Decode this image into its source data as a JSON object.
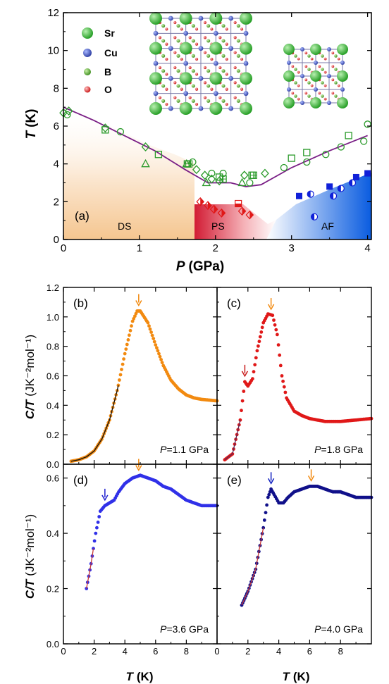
{
  "colors": {
    "ds": "#f5cfa6",
    "ps": "#d8263a",
    "af": "#1a5fd6",
    "green": "#2a9a2a",
    "curve": "#7a1f86",
    "orange": "#f28a10",
    "red": "#e01818",
    "blue": "#3030e8",
    "navy": "#10108a"
  },
  "chart_data": [
    {
      "type": "scatter",
      "panel_label": "(a)",
      "xlabel_italic": "P",
      "xlabel_unit": "(GPa)",
      "ylabel_italic": "T",
      "ylabel_unit": "(K)",
      "xlim": [
        0,
        4.05
      ],
      "ylim": [
        0,
        12
      ],
      "xticks": [
        "0",
        "1",
        "2",
        "3",
        "4"
      ],
      "yticks": [
        "0",
        "2",
        "4",
        "6",
        "8",
        "10",
        "12"
      ],
      "regions": [
        "DS",
        "PS",
        "AF"
      ],
      "legend": [
        "Sr",
        "Cu",
        "B",
        "O"
      ],
      "series": [
        {
          "marker": "circle",
          "points": [
            [
              0.05,
              6.6
            ],
            [
              0.75,
              5.7
            ],
            [
              1.7,
              4.1
            ],
            [
              1.95,
              3.5
            ],
            [
              2.1,
              3.5
            ],
            [
              2.45,
              3.0
            ],
            [
              2.9,
              3.8
            ],
            [
              3.2,
              4.1
            ],
            [
              3.45,
              4.5
            ],
            [
              3.65,
              4.9
            ],
            [
              3.95,
              5.2
            ],
            [
              4.0,
              6.1
            ]
          ]
        },
        {
          "marker": "diamond",
          "points": [
            [
              0.0,
              6.7
            ],
            [
              0.07,
              6.8
            ],
            [
              0.55,
              5.9
            ],
            [
              1.08,
              4.9
            ],
            [
              1.75,
              3.7
            ],
            [
              1.86,
              3.4
            ],
            [
              1.95,
              3.2
            ],
            [
              2.05,
              3.1
            ],
            [
              2.38,
              3.4
            ],
            [
              2.65,
              3.5
            ]
          ]
        },
        {
          "marker": "square",
          "points": [
            [
              0.55,
              5.8
            ],
            [
              1.25,
              4.5
            ],
            [
              1.63,
              4.0
            ],
            [
              2.05,
              3.3
            ],
            [
              2.48,
              3.4
            ],
            [
              3.0,
              4.3
            ],
            [
              3.2,
              4.6
            ],
            [
              3.75,
              5.5
            ]
          ]
        },
        {
          "marker": "triangle",
          "points": [
            [
              1.08,
              4.0
            ],
            [
              1.62,
              4.0
            ],
            [
              1.88,
              3.0
            ],
            [
              2.35,
              3.0
            ]
          ]
        },
        {
          "marker": "squareplus",
          "points": [
            [
              1.65,
              4.0
            ],
            [
              2.1,
              3.2
            ],
            [
              2.5,
              3.4
            ]
          ]
        },
        {
          "marker": "red_diamond",
          "points": [
            [
              1.8,
              2.0
            ],
            [
              1.9,
              1.8
            ],
            [
              1.98,
              1.6
            ],
            [
              2.08,
              1.4
            ],
            [
              2.35,
              1.5
            ],
            [
              2.45,
              1.3
            ]
          ]
        },
        {
          "marker": "red_square",
          "points": [
            [
              2.3,
              1.9
            ]
          ]
        },
        {
          "marker": "blue_square",
          "points": [
            [
              3.1,
              2.3
            ],
            [
              3.5,
              2.8
            ],
            [
              3.85,
              3.3
            ],
            [
              4.0,
              3.5
            ]
          ]
        },
        {
          "marker": "blue_circle_half",
          "points": [
            [
              3.25,
              2.4
            ],
            [
              3.3,
              1.2
            ],
            [
              3.55,
              2.3
            ],
            [
              3.65,
              2.7
            ],
            [
              3.8,
              3.0
            ]
          ]
        }
      ],
      "phase_boundary": {
        "x": [
          0.0,
          0.4,
          0.8,
          1.2,
          1.6,
          1.9,
          2.2,
          2.4,
          2.6,
          3.0,
          3.5,
          4.0
        ],
        "y": [
          7.0,
          6.3,
          5.5,
          4.7,
          3.7,
          3.0,
          3.0,
          2.8,
          2.9,
          3.8,
          4.7,
          5.5
        ]
      }
    },
    {
      "type": "line",
      "panel_label": "(b)",
      "pressure_prefix": "P",
      "pressure_value": "=1.1 GPa",
      "ylabel_main": "C/T",
      "ylabel_unit": "(JK⁻²mol⁻¹)",
      "xlim": [
        0,
        10
      ],
      "ylim": [
        0,
        1.2
      ],
      "yticks": [
        "0.0",
        "0.2",
        "0.4",
        "0.6",
        "0.8",
        "1.0",
        "1.2"
      ],
      "x": [
        0.5,
        1,
        1.5,
        2,
        2.5,
        3,
        3.5,
        4,
        4.5,
        4.8,
        5,
        5.5,
        6,
        6.5,
        7,
        7.5,
        8,
        8.5,
        9,
        10
      ],
      "y": [
        0.02,
        0.03,
        0.05,
        0.09,
        0.17,
        0.3,
        0.5,
        0.75,
        0.97,
        1.04,
        1.04,
        0.96,
        0.81,
        0.67,
        0.57,
        0.51,
        0.47,
        0.45,
        0.44,
        0.43
      ],
      "fit_x_max": 3.6,
      "arrows": [
        4.9
      ]
    },
    {
      "type": "line",
      "panel_label": "(c)",
      "pressure_prefix": "P",
      "pressure_value": "=1.8 GPa",
      "xlim": [
        0,
        10
      ],
      "ylim": [
        0,
        1.2
      ],
      "x": [
        0.5,
        1,
        1.5,
        1.8,
        2,
        2.3,
        2.6,
        3,
        3.3,
        3.6,
        3.9,
        4.2,
        4.5,
        5,
        5.5,
        6,
        7,
        8,
        9,
        10
      ],
      "y": [
        0.03,
        0.07,
        0.3,
        0.56,
        0.53,
        0.58,
        0.77,
        0.96,
        1.02,
        1.01,
        0.88,
        0.6,
        0.45,
        0.36,
        0.33,
        0.31,
        0.29,
        0.29,
        0.3,
        0.31
      ],
      "fit_x_max": 1.5,
      "arrows": [
        1.8,
        3.5
      ]
    },
    {
      "type": "line",
      "panel_label": "(d)",
      "pressure_prefix": "P",
      "pressure_value": "=3.6 GPa",
      "xlabel_italic": "T",
      "xlabel_unit": "(K)",
      "ylabel_main": "C/T",
      "ylabel_unit": "(JK⁻²mol⁻¹)",
      "xlim": [
        0,
        10
      ],
      "ylim": [
        0,
        0.65
      ],
      "xticks": [
        "0",
        "2",
        "4",
        "6",
        "8"
      ],
      "yticks": [
        "0.0",
        "0.2",
        "0.4",
        "0.6"
      ],
      "x": [
        1.5,
        1.8,
        2.1,
        2.4,
        2.7,
        3,
        3.3,
        3.6,
        4,
        4.5,
        5,
        5.5,
        6,
        6.5,
        7,
        7.5,
        8,
        8.5,
        9,
        10
      ],
      "y": [
        0.2,
        0.29,
        0.4,
        0.48,
        0.5,
        0.51,
        0.52,
        0.55,
        0.58,
        0.6,
        0.61,
        0.6,
        0.59,
        0.57,
        0.56,
        0.54,
        0.52,
        0.51,
        0.5,
        0.5
      ],
      "fit_x_max": 2.0,
      "arrows": [
        2.7,
        4.9
      ]
    },
    {
      "type": "line",
      "panel_label": "(e)",
      "pressure_prefix": "P",
      "pressure_value": "=4.0 GPa",
      "xlabel_italic": "T",
      "xlabel_unit": "(K)",
      "xlim": [
        0,
        10
      ],
      "ylim": [
        0,
        0.65
      ],
      "xticks": [
        "0",
        "2",
        "4",
        "6",
        "8"
      ],
      "x": [
        1.6,
        2,
        2.5,
        3,
        3.3,
        3.5,
        3.7,
        4,
        4.3,
        4.6,
        5,
        5.5,
        6,
        6.5,
        7,
        7.5,
        8,
        8.5,
        9,
        10
      ],
      "y": [
        0.14,
        0.19,
        0.27,
        0.42,
        0.53,
        0.56,
        0.54,
        0.51,
        0.51,
        0.53,
        0.55,
        0.56,
        0.57,
        0.57,
        0.56,
        0.55,
        0.55,
        0.54,
        0.53,
        0.53
      ],
      "fit_x_max": 3.0,
      "arrows": [
        3.5,
        6.1
      ]
    }
  ]
}
